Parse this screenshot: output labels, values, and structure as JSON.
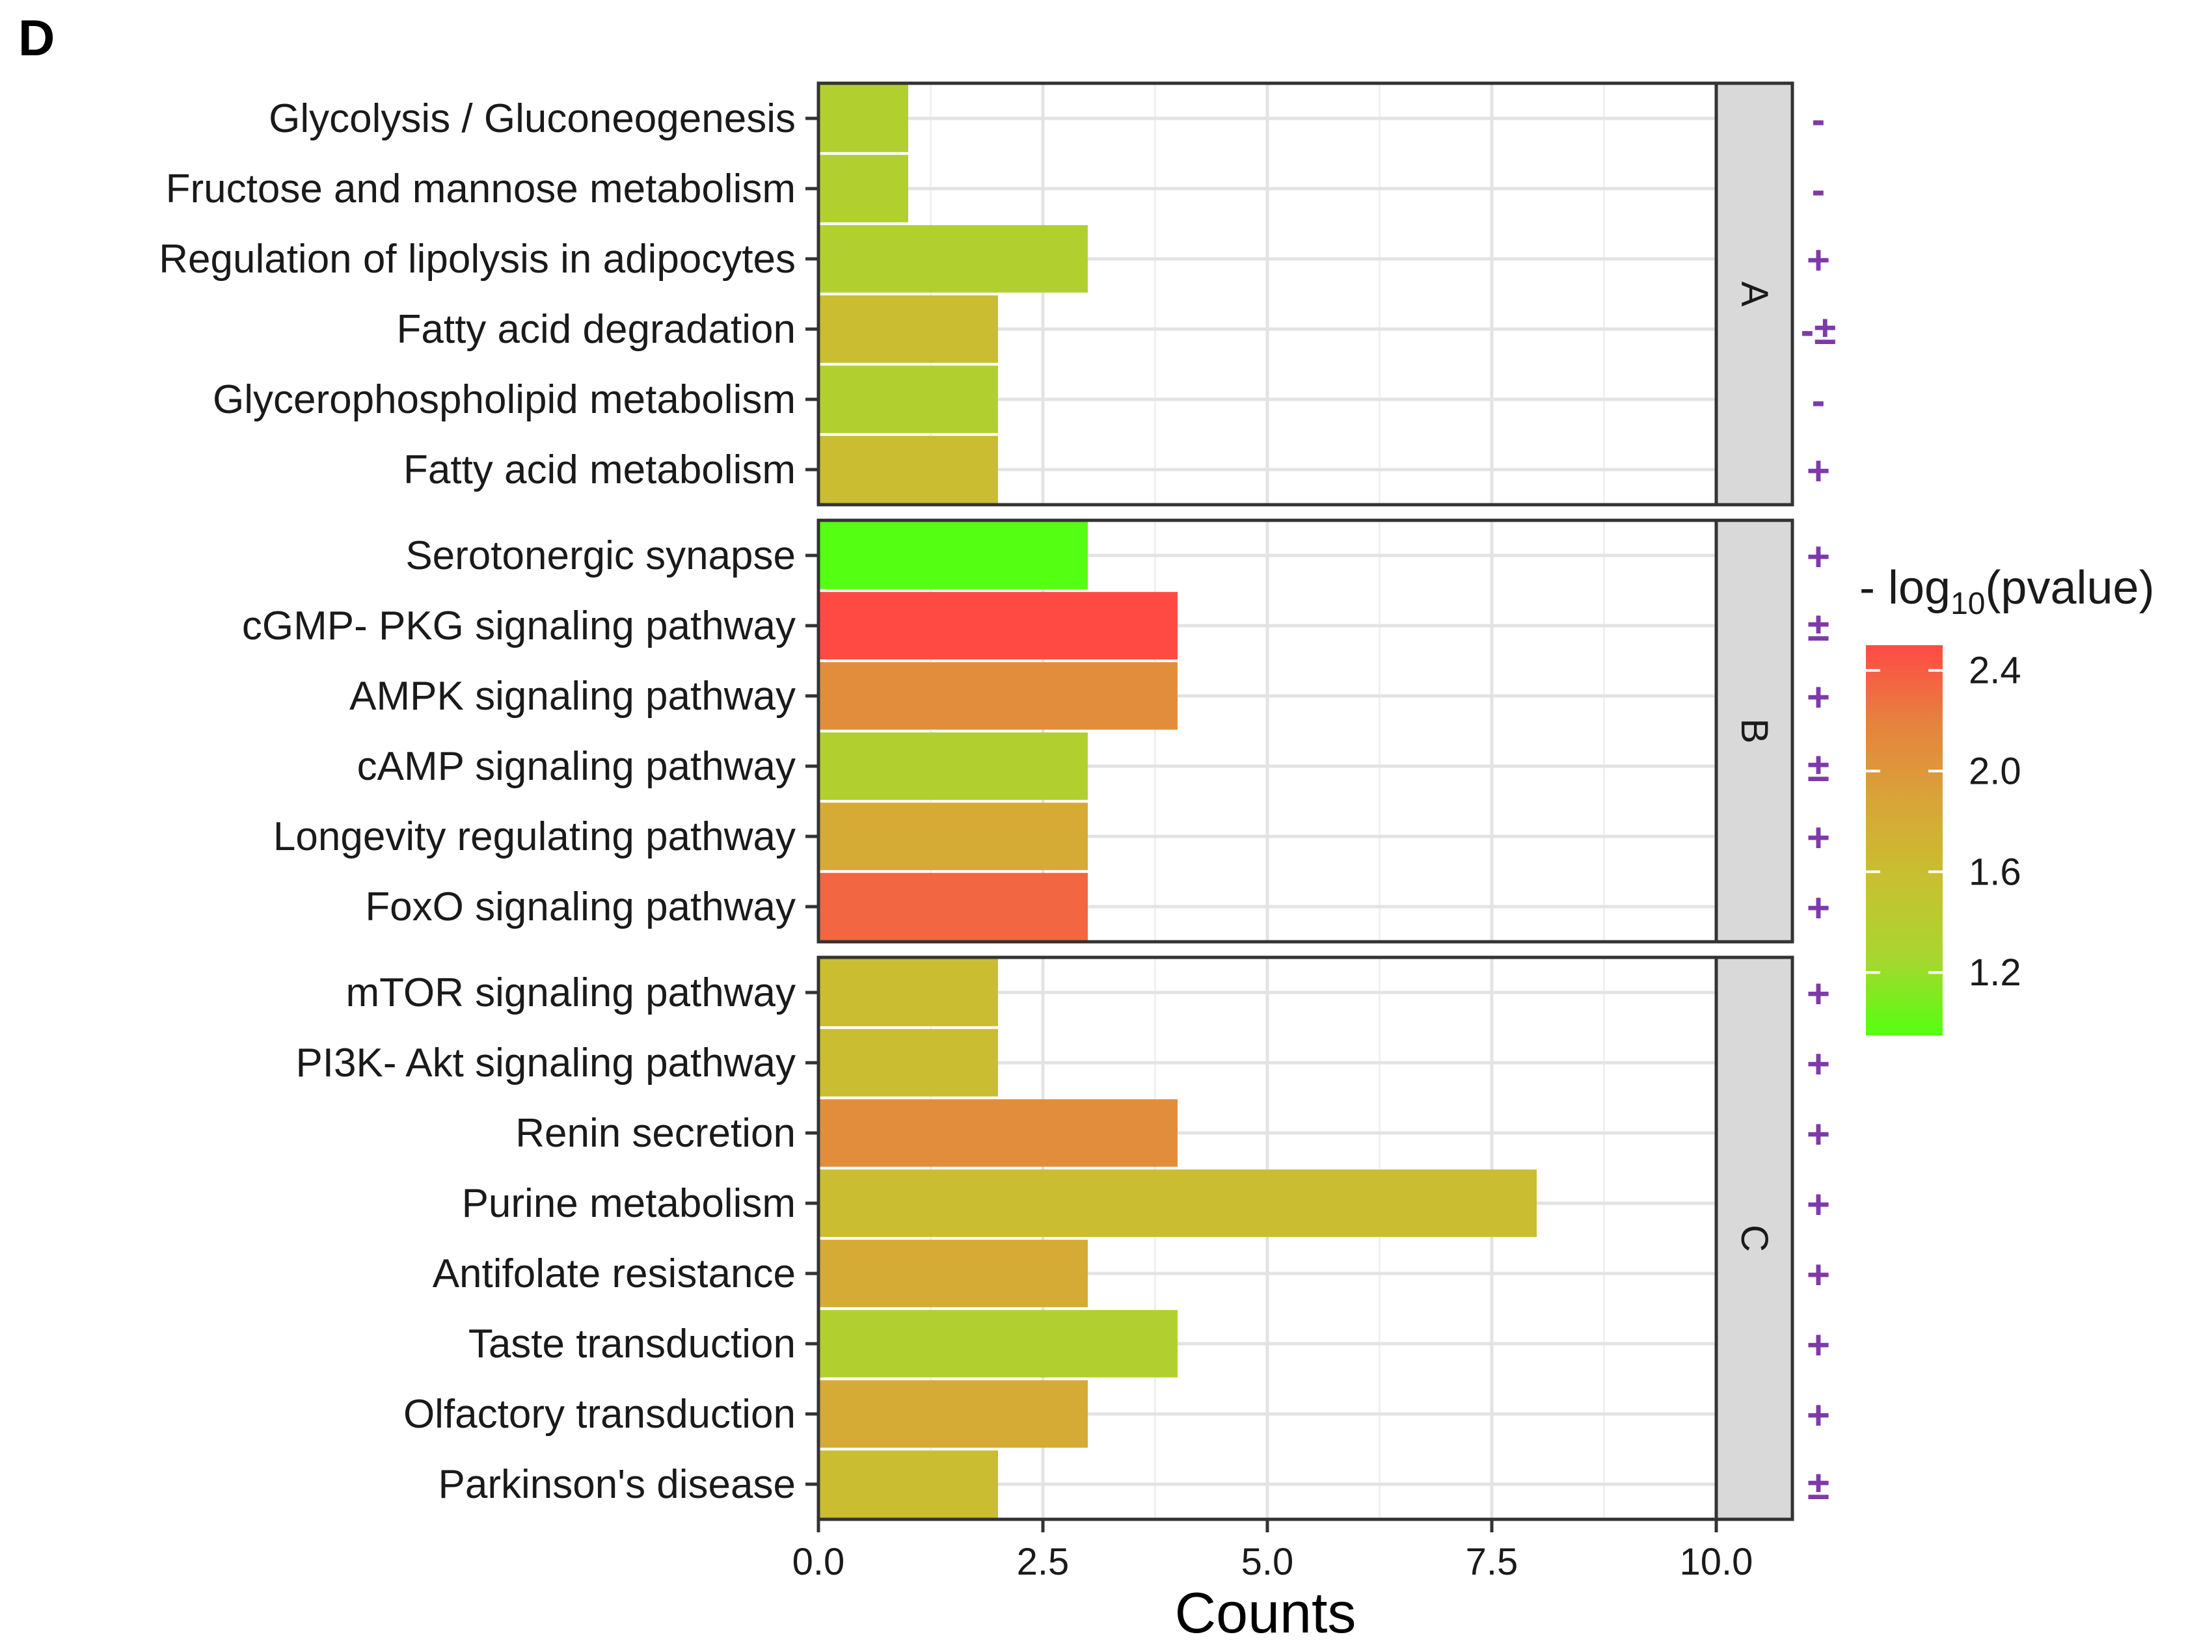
{
  "panel_letter": "D",
  "chart_data": {
    "type": "bar",
    "orientation": "horizontal",
    "faceted": true,
    "xlabel": "Counts",
    "xlim": [
      0,
      10
    ],
    "x_ticks": [
      0,
      2.5,
      5,
      7.5,
      10
    ],
    "x_tick_labels": [
      "0.0",
      "2.5",
      "5.0",
      "7.5",
      "10.0"
    ],
    "legend": {
      "title_prefix": "- log",
      "title_subscript": "10",
      "title_suffix": "(pvalue)",
      "position": "right",
      "range": [
        0.95,
        2.5
      ],
      "ticks": [
        2.4,
        2.0,
        1.6,
        1.2
      ],
      "tick_labels": [
        "2.4",
        "2.0",
        "1.6",
        "1.2"
      ],
      "colors": [
        "#55ff11",
        "#a8d630",
        "#c8c030",
        "#d9a438",
        "#e5833e",
        "#ff4a44"
      ]
    },
    "facets": [
      {
        "label": "A",
        "categories": [
          "Glycolysis / Gluconeogenesis",
          "Fructose and mannose metabolism",
          "Regulation of lipolysis in adipocytes",
          "Fatty acid degradation",
          "Glycerophospholipid metabolism",
          "Fatty acid metabolism"
        ],
        "values": [
          1,
          1,
          3,
          2,
          2,
          2
        ],
        "neglog10_pvalue": [
          1.35,
          1.35,
          1.35,
          1.6,
          1.35,
          1.6
        ],
        "regulation": [
          "-",
          "-",
          "+",
          "-±",
          "-",
          "+"
        ]
      },
      {
        "label": "B",
        "categories": [
          "Serotonergic synapse",
          "cGMP- PKG signaling pathway",
          "AMPK signaling pathway",
          "cAMP signaling pathway",
          "Longevity regulating pathway",
          "FoxO signaling pathway"
        ],
        "values": [
          3,
          4,
          4,
          3,
          3,
          3
        ],
        "neglog10_pvalue": [
          0.95,
          2.5,
          2.1,
          1.35,
          1.8,
          2.35
        ],
        "regulation": [
          "+",
          "±",
          "+",
          "±",
          "+",
          "+"
        ]
      },
      {
        "label": "C",
        "categories": [
          "mTOR signaling pathway",
          "PI3K- Akt signaling pathway",
          "Renin secretion",
          "Purine metabolism",
          "Antifolate resistance",
          "Taste transduction",
          "Olfactory transduction",
          "Parkinson's disease"
        ],
        "values": [
          2,
          2,
          4,
          8,
          3,
          4,
          3,
          2
        ],
        "neglog10_pvalue": [
          1.6,
          1.6,
          2.1,
          1.6,
          1.8,
          1.35,
          1.8,
          1.6
        ],
        "regulation": [
          "+",
          "+",
          "+",
          "+",
          "+",
          "+",
          "+",
          "±"
        ]
      }
    ]
  }
}
